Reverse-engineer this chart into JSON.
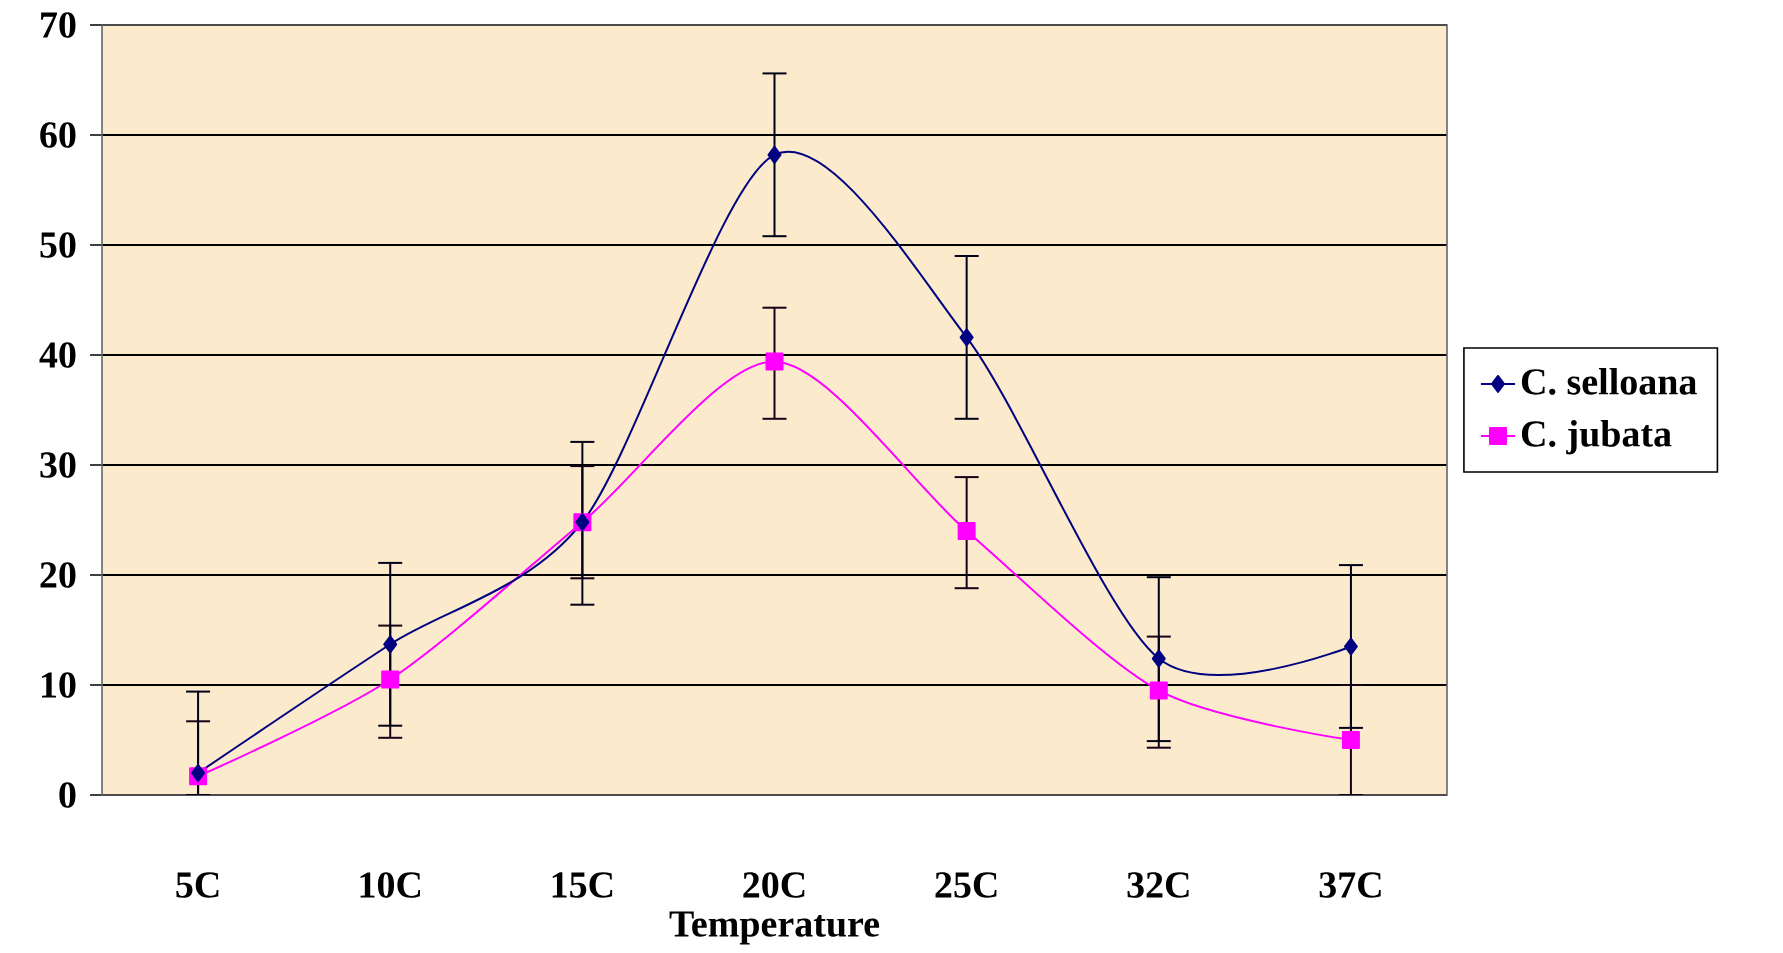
{
  "chart_data": {
    "type": "line",
    "xlabel": "Temperature",
    "categories": [
      "5C",
      "10C",
      "15C",
      "20C",
      "25C",
      "32C",
      "37C"
    ],
    "series": [
      {
        "name": "C. selloana",
        "color": "#000080",
        "marker": "diamond",
        "values": [
          2.0,
          13.7,
          24.8,
          58.2,
          41.6,
          12.4,
          13.5
        ],
        "errors": [
          [
            0,
            9.4
          ],
          [
            6.3,
            21.1
          ],
          [
            17.3,
            32.1
          ],
          [
            50.8,
            65.6
          ],
          [
            34.2,
            49.0
          ],
          [
            4.9,
            19.8
          ],
          [
            6.1,
            20.9
          ]
        ]
      },
      {
        "name": "C. jubata",
        "color": "#ff00ff",
        "marker": "square",
        "values": [
          1.7,
          10.5,
          24.8,
          39.4,
          24.0,
          9.5,
          5.0
        ],
        "errors": [
          [
            0,
            6.7
          ],
          [
            5.2,
            15.4
          ],
          [
            19.7,
            29.9
          ],
          [
            34.2,
            44.3
          ],
          [
            18.8,
            28.9
          ],
          [
            4.3,
            14.4
          ],
          [
            0,
            10.0
          ]
        ]
      }
    ],
    "ylim": [
      0,
      70
    ],
    "yticks": [
      0,
      10,
      20,
      30,
      40,
      50,
      60,
      70
    ],
    "grid": "y",
    "legend": "right",
    "line_style": "solid"
  }
}
